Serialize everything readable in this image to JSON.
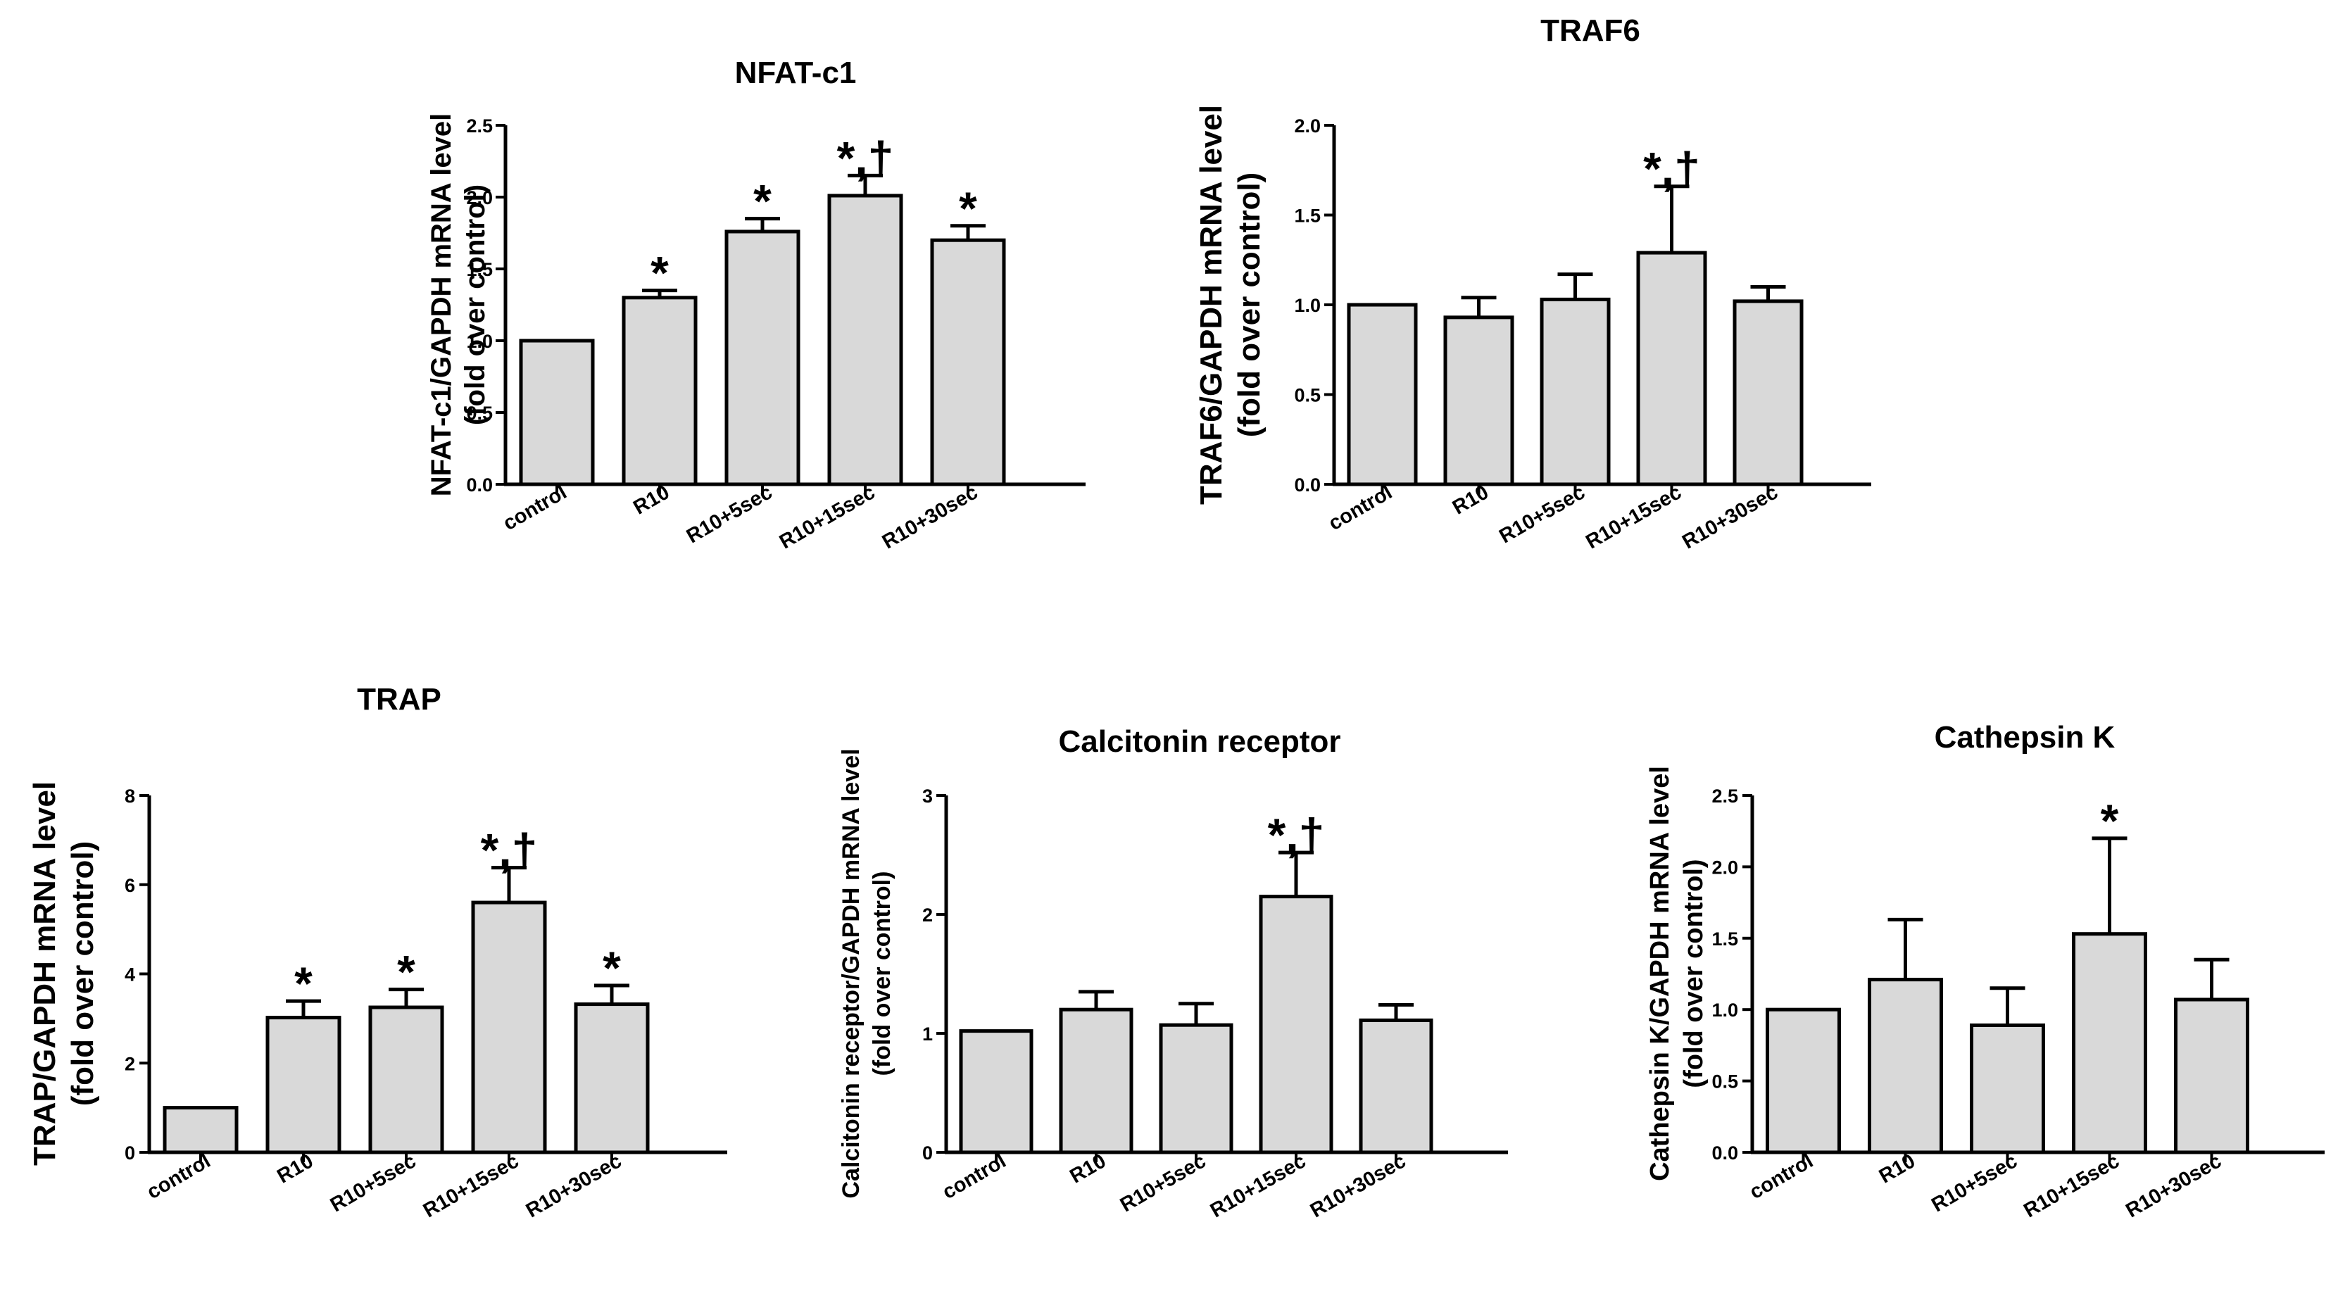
{
  "figure": {
    "panel_count": 5
  },
  "chart_data": [
    {
      "type": "bar",
      "title": "NFAT-c1",
      "ylabel_lines": [
        "NFAT-c1/GAPDH mRNA level",
        "(fold over control)"
      ],
      "xlabel": "",
      "categories": [
        "control",
        "R10",
        "R10+5sec",
        "R10+15sec",
        "R10+30sec"
      ],
      "values": [
        1.0,
        1.3,
        1.76,
        2.01,
        1.7
      ],
      "errors": [
        0,
        0.05,
        0.09,
        0.14,
        0.1
      ],
      "annotations": [
        "",
        "*",
        "*",
        "*,†",
        "*"
      ],
      "ylim": [
        0,
        2.5
      ],
      "yticks": [
        "0.0",
        "0.5",
        "1.0",
        "1.5",
        "2.0",
        "2.5"
      ],
      "bar_color": "#d9d9d9"
    },
    {
      "type": "bar",
      "title": "TRAF6",
      "ylabel_lines": [
        "TRAF6/GAPDH mRNA level",
        "(fold over control)"
      ],
      "xlabel": "",
      "categories": [
        "control",
        "R10",
        "R10+5sec",
        "R10+15sec",
        "R10+30sec"
      ],
      "values": [
        1.0,
        0.93,
        1.03,
        1.29,
        1.02
      ],
      "errors": [
        0,
        0.11,
        0.14,
        0.37,
        0.08
      ],
      "annotations": [
        "",
        "",
        "",
        "*,†",
        ""
      ],
      "ylim": [
        0,
        2.0
      ],
      "yticks": [
        "0.0",
        "0.5",
        "1.0",
        "1.5",
        "2.0"
      ],
      "bar_color": "#d9d9d9"
    },
    {
      "type": "bar",
      "title": "TRAP",
      "ylabel_lines": [
        "TRAP/GAPDH mRNA level",
        "(fold over control)"
      ],
      "xlabel": "",
      "categories": [
        "control",
        "R10",
        "R10+5sec",
        "R10+15sec",
        "R10+30sec"
      ],
      "values": [
        1.0,
        3.02,
        3.25,
        5.6,
        3.32
      ],
      "errors": [
        0,
        0.37,
        0.4,
        0.78,
        0.42
      ],
      "annotations": [
        "",
        "*",
        "*",
        "*,†",
        "*"
      ],
      "ylim": [
        0,
        8
      ],
      "yticks": [
        "0",
        "2",
        "4",
        "6",
        "8"
      ],
      "bar_color": "#d9d9d9"
    },
    {
      "type": "bar",
      "title": "Calcitonin receptor",
      "ylabel_lines": [
        "Calcitonin receptor/GAPDH mRNA level",
        "(fold over control)"
      ],
      "xlabel": "",
      "categories": [
        "control",
        "R10",
        "R10+5sec",
        "R10+15sec",
        "R10+30sec"
      ],
      "values": [
        1.02,
        1.2,
        1.07,
        2.15,
        1.11
      ],
      "errors": [
        0,
        0.15,
        0.18,
        0.37,
        0.13
      ],
      "annotations": [
        "",
        "",
        "",
        "*,†",
        ""
      ],
      "ylim": [
        0,
        3
      ],
      "yticks": [
        "0",
        "1",
        "2",
        "3"
      ],
      "bar_color": "#d9d9d9"
    },
    {
      "type": "bar",
      "title": "Cathepsin K",
      "ylabel_lines": [
        "Cathepsin K/GAPDH mRNA level",
        "(fold over control)"
      ],
      "xlabel": "",
      "categories": [
        "control",
        "R10",
        "R10+5sec",
        "R10+15sec",
        "R10+30sec"
      ],
      "values": [
        1.0,
        1.21,
        0.89,
        1.53,
        1.07
      ],
      "errors": [
        0,
        0.42,
        0.26,
        0.67,
        0.28
      ],
      "annotations": [
        "",
        "",
        "",
        "*",
        ""
      ],
      "ylim": [
        0,
        2.5
      ],
      "yticks": [
        "0.0",
        "0.5",
        "1.0",
        "1.5",
        "2.0",
        "2.5"
      ],
      "bar_color": "#d9d9d9"
    }
  ]
}
